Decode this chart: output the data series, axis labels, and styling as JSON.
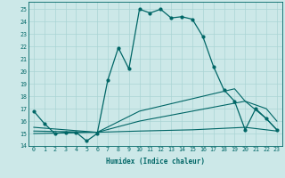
{
  "xlabel": "Humidex (Indice chaleur)",
  "bg_color": "#cce8e8",
  "line_color": "#006666",
  "grid_color": "#aad4d4",
  "xlim": [
    -0.5,
    23.5
  ],
  "ylim": [
    14,
    25.6
  ],
  "yticks": [
    14,
    15,
    16,
    17,
    18,
    19,
    20,
    21,
    22,
    23,
    24,
    25
  ],
  "xticks": [
    0,
    1,
    2,
    3,
    4,
    5,
    6,
    7,
    8,
    9,
    10,
    11,
    12,
    13,
    14,
    15,
    16,
    17,
    18,
    19,
    20,
    21,
    22,
    23
  ],
  "series1_x": [
    0,
    1,
    2,
    3,
    4,
    5,
    6,
    7,
    8,
    9,
    10,
    11,
    12,
    13,
    14,
    15,
    16,
    17,
    18,
    19,
    20,
    21,
    22,
    23
  ],
  "series1_y": [
    16.8,
    15.8,
    15.0,
    15.1,
    15.1,
    14.4,
    15.0,
    19.3,
    21.9,
    20.2,
    25.0,
    24.7,
    25.0,
    24.3,
    24.4,
    24.2,
    22.8,
    20.4,
    18.5,
    17.6,
    15.3,
    17.0,
    16.2,
    15.3
  ],
  "series2_x": [
    0,
    6,
    10,
    15,
    20,
    22,
    23
  ],
  "series2_y": [
    15.0,
    15.1,
    15.2,
    15.3,
    15.5,
    15.3,
    15.2
  ],
  "series3_x": [
    0,
    6,
    10,
    15,
    20,
    22,
    23
  ],
  "series3_y": [
    15.2,
    15.1,
    16.0,
    16.8,
    17.6,
    16.2,
    15.3
  ],
  "series4_x": [
    0,
    6,
    10,
    15,
    19,
    20,
    22,
    23
  ],
  "series4_y": [
    15.5,
    15.1,
    16.8,
    17.8,
    18.6,
    17.6,
    17.0,
    16.0
  ]
}
